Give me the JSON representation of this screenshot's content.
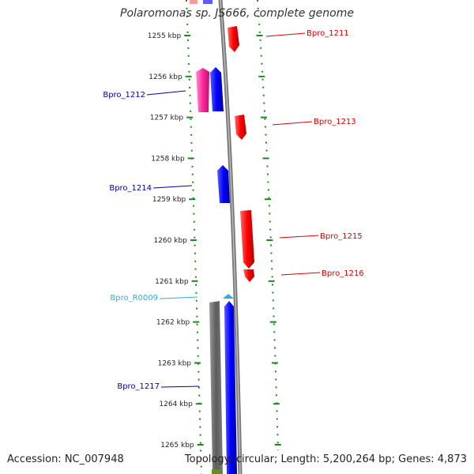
{
  "title": "Polaromonas sp. JS666, complete genome",
  "accession": "Accession: NC_007948",
  "topology": "Topology: circular; Length: 5,200,264 bp; Genes: 4,873",
  "colors": {
    "forward_gene": "#ff0000",
    "reverse_gene": "#0000ff",
    "highlight_gene": "#ff1493",
    "rna": "#2ab0e8",
    "backbone": "#888888",
    "dark_segment": "#666666",
    "tick": "#1a8a1a"
  },
  "ticks": [
    {
      "label": "1255 kbp"
    },
    {
      "label": "1256 kbp"
    },
    {
      "label": "1257 kbp"
    },
    {
      "label": "1258 kbp"
    },
    {
      "label": "1259 kbp"
    },
    {
      "label": "1260 kbp"
    },
    {
      "label": "1261 kbp"
    },
    {
      "label": "1262 kbp"
    },
    {
      "label": "1263 kbp"
    },
    {
      "label": "1264 kbp"
    },
    {
      "label": "1265 kbp"
    }
  ],
  "genes": [
    {
      "name": "Bpro_1211",
      "strand": "forward",
      "color": "#ff0000"
    },
    {
      "name": "Bpro_1212",
      "strand": "reverse",
      "color": "#0000aa"
    },
    {
      "name": "Bpro_1213",
      "strand": "forward",
      "color": "#ff0000"
    },
    {
      "name": "Bpro_1214",
      "strand": "reverse",
      "color": "#0000aa"
    },
    {
      "name": "Bpro_1215",
      "strand": "forward",
      "color": "#ff0000"
    },
    {
      "name": "Bpro_1216",
      "strand": "forward",
      "color": "#ff0000"
    },
    {
      "name": "Bpro_R0009",
      "strand": "reverse",
      "color": "#2ab0e8"
    },
    {
      "name": "Bpro_1217",
      "strand": "reverse",
      "color": "#0000aa"
    }
  ]
}
